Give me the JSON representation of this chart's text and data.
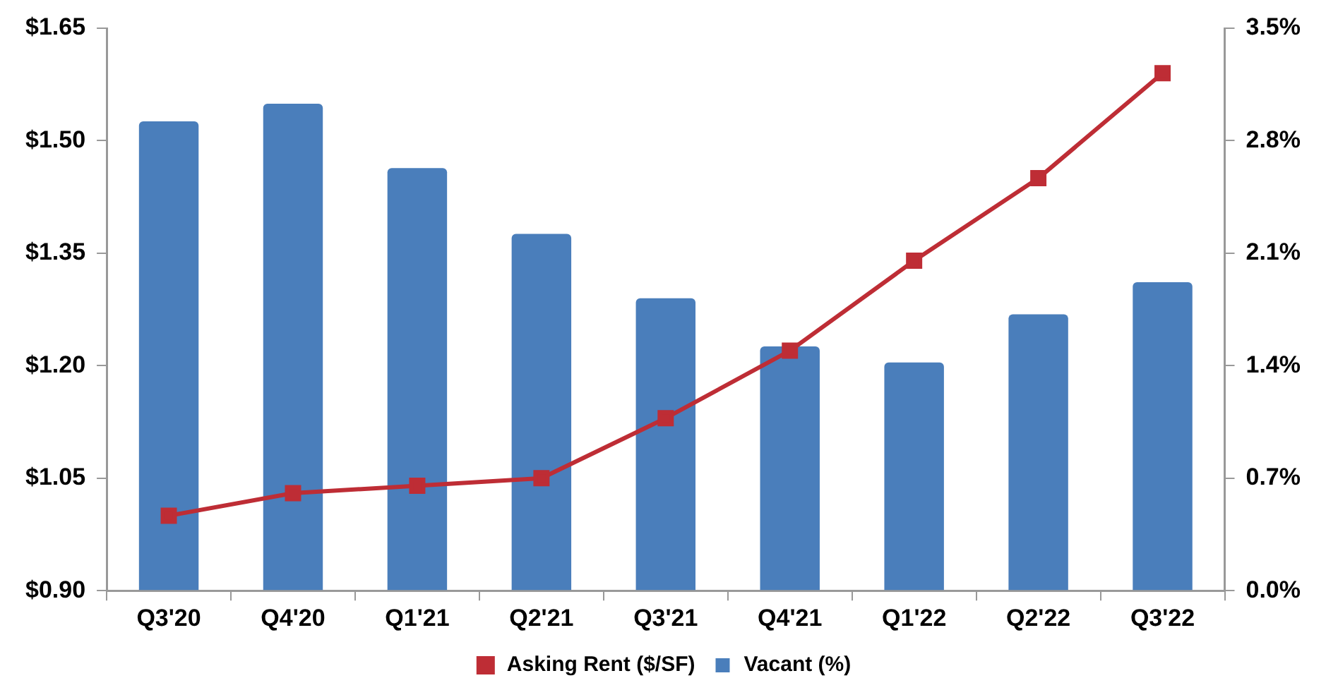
{
  "chart_data": {
    "type": "bar",
    "categories": [
      "Q3'20",
      "Q4'20",
      "Q1'21",
      "Q2'21",
      "Q3'21",
      "Q4'21",
      "Q1'22",
      "Q2'22",
      "Q3'22"
    ],
    "series": [
      {
        "name": "Asking Rent ($/SF)",
        "type": "line",
        "color": "#be2d35",
        "values": [
          1.0,
          1.03,
          1.04,
          1.05,
          1.13,
          1.22,
          1.34,
          1.45,
          1.59
        ]
      },
      {
        "name": "Vacant (%)",
        "axis": "y2",
        "color": "#4a7ebb",
        "values": [
          2.92,
          3.03,
          2.63,
          2.22,
          1.82,
          1.52,
          1.42,
          1.72,
          1.92
        ]
      }
    ],
    "ylim": [
      0.9,
      1.65
    ],
    "yticks": [
      {
        "value": 0.9,
        "label": "$0.90"
      },
      {
        "value": 1.05,
        "label": "$1.05"
      },
      {
        "value": 1.2,
        "label": "$1.20"
      },
      {
        "value": 1.35,
        "label": "$1.35"
      },
      {
        "value": 1.5,
        "label": "$1.50"
      },
      {
        "value": 1.65,
        "label": "$1.65"
      }
    ],
    "y2lim": [
      0,
      3.5
    ],
    "y2ticks": [
      {
        "value": 0,
        "label": "0.0%"
      },
      {
        "value": 0.7,
        "label": "0.7%"
      },
      {
        "value": 1.4,
        "label": "1.4%"
      },
      {
        "value": 2.1,
        "label": "2.1%"
      },
      {
        "value": 2.8,
        "label": "2.8%"
      },
      {
        "value": 3.5,
        "label": "3.5%"
      }
    ],
    "grid": false,
    "legend": "bottom",
    "marker": "square"
  }
}
